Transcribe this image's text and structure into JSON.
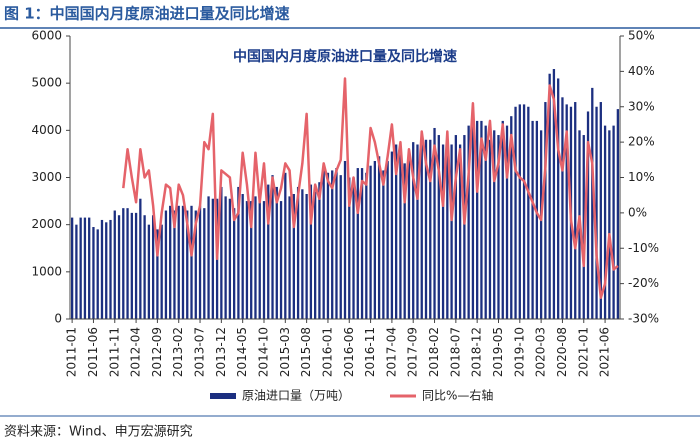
{
  "chart_data": {
    "type": "bar_line",
    "caption": "图 1：中国国内月度原油进口量及同比增速",
    "title": "中国国内月度原油进口量及同比增速",
    "source": "资料来源：Wind、申万宏源研究",
    "categories": [
      "2011-01",
      null,
      null,
      null,
      null,
      "2011-06",
      null,
      null,
      null,
      null,
      "2011-11",
      null,
      null,
      null,
      null,
      "2012-04",
      null,
      null,
      null,
      null,
      "2012-09",
      null,
      null,
      null,
      null,
      "2013-02",
      null,
      null,
      null,
      null,
      "2013-07",
      null,
      null,
      null,
      null,
      "2013-12",
      null,
      null,
      null,
      null,
      "2014-05",
      null,
      null,
      null,
      null,
      "2014-10",
      null,
      null,
      null,
      null,
      "2015-03",
      null,
      null,
      null,
      null,
      "2015-08",
      null,
      null,
      null,
      null,
      "2016-01",
      null,
      null,
      null,
      null,
      "2016-06",
      null,
      null,
      null,
      null,
      "2016-11",
      null,
      null,
      null,
      null,
      "2017-04",
      null,
      null,
      null,
      null,
      "2017-09",
      null,
      null,
      null,
      null,
      "2018-02",
      null,
      null,
      null,
      null,
      "2018-07",
      null,
      null,
      null,
      null,
      "2018-12",
      null,
      null,
      null,
      null,
      "2019-05",
      null,
      null,
      null,
      null,
      "2019-10",
      null,
      null,
      null,
      null,
      "2020-03",
      null,
      null,
      null,
      null,
      "2020-08",
      null,
      null,
      null,
      null,
      "2021-01",
      null,
      null,
      null,
      null,
      "2021-06",
      null,
      null,
      null
    ],
    "series": [
      {
        "name": "原油进口量（万吨）",
        "color": "#1c2f80",
        "kind": "bar",
        "values": [
          2150,
          2000,
          2150,
          2150,
          2150,
          1950,
          1900,
          2100,
          2050,
          2100,
          2300,
          2200,
          2350,
          2350,
          2250,
          2250,
          2550,
          2200,
          2000,
          2200,
          1900,
          2000,
          2300,
          2400,
          2300,
          2400,
          2400,
          2300,
          2400,
          2300,
          2400,
          2350,
          2600,
          2550,
          2550,
          2800,
          2600,
          2550,
          2350,
          2800,
          2650,
          2500,
          2500,
          2600,
          2550,
          2500,
          2850,
          3050,
          2800,
          2500,
          3100,
          2600,
          2650,
          2800,
          2750,
          2650,
          2850,
          2700,
          2900,
          3300,
          3100,
          3150,
          3200,
          3050,
          3350,
          3000,
          3000,
          3200,
          3200,
          3100,
          3250,
          3350,
          3450,
          3150,
          3350,
          3550,
          3700,
          3600,
          3300,
          3550,
          3750,
          3700,
          3900,
          3800,
          3800,
          4050,
          3900,
          3700,
          3900,
          3700,
          3900,
          3700,
          3900,
          4100,
          4500,
          4200,
          4200,
          4100,
          3800,
          4000,
          3900,
          4200,
          4100,
          4300,
          4500,
          4550,
          4550,
          4500,
          4200,
          4200,
          4000,
          4600,
          5200,
          5300,
          5100,
          4700,
          4550,
          4500,
          4600,
          4000,
          3900,
          4400,
          4900,
          4500,
          4600,
          4100,
          4000,
          4100,
          4450
        ]
      },
      {
        "name": "同比%—右轴",
        "color": "#e5636a",
        "kind": "line",
        "axis": "y2",
        "values": [
          null,
          null,
          null,
          null,
          null,
          null,
          null,
          null,
          null,
          null,
          null,
          null,
          7,
          18,
          10,
          3,
          18,
          10,
          12,
          2,
          -12,
          0,
          8,
          7,
          -4,
          8,
          5,
          -3,
          -12,
          -3,
          2,
          20,
          18,
          28,
          -13,
          12,
          11,
          10,
          -2,
          0,
          17,
          8,
          -4,
          17,
          3,
          14,
          -3,
          10,
          3,
          7,
          14,
          12,
          -4,
          5,
          14,
          28,
          -3,
          8,
          4,
          14,
          9,
          7,
          12,
          15,
          38,
          2,
          10,
          0,
          9,
          8,
          24,
          20,
          14,
          8,
          16,
          25,
          11,
          20,
          3,
          18,
          10,
          4,
          23,
          14,
          9,
          19,
          12,
          2,
          23,
          -2,
          10,
          18,
          -3,
          11,
          31,
          6,
          21,
          15,
          26,
          9,
          14,
          25,
          10,
          22,
          12,
          10,
          9,
          6,
          3,
          0,
          -2,
          13,
          36,
          32,
          18,
          12,
          23,
          -2,
          -10,
          -1,
          -15,
          20,
          14,
          -12,
          -24,
          -20,
          -6,
          -16,
          -15
        ]
      }
    ],
    "ylim": [
      0,
      6000
    ],
    "yticks": [
      0,
      1000,
      2000,
      3000,
      4000,
      5000,
      6000
    ],
    "y2lim": [
      -30,
      50
    ],
    "y2ticks": [
      {
        "value": -30,
        "label": "-30%"
      },
      {
        "value": -20,
        "label": "-20%"
      },
      {
        "value": -10,
        "label": "-10%"
      },
      {
        "value": 0,
        "label": "0%"
      },
      {
        "value": 10,
        "label": "10%"
      },
      {
        "value": 20,
        "label": "20%"
      },
      {
        "value": 30,
        "label": "30%"
      },
      {
        "value": 40,
        "label": "40%"
      },
      {
        "value": 50,
        "label": "50%"
      }
    ]
  }
}
